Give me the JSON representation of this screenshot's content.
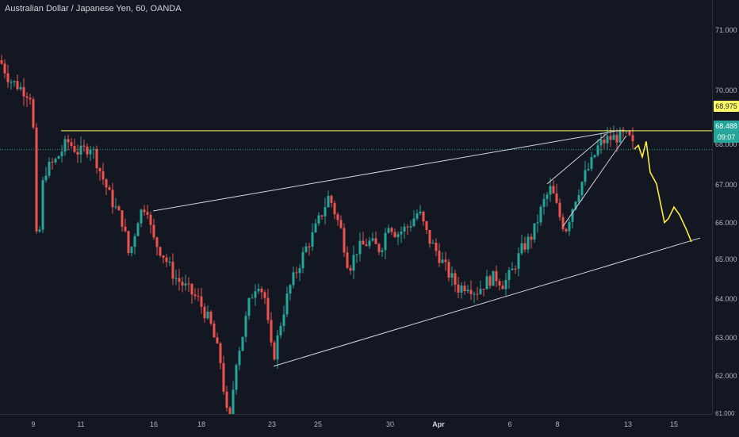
{
  "header": {
    "title": "Australian Dollar / Japanese Yen, 60, OANDA"
  },
  "price_axis": {
    "ticks": [
      "71.000",
      "70.000",
      "69.000",
      "68.000",
      "67.000",
      "66.000",
      "65.000",
      "64.000",
      "63.000",
      "62.000",
      "61.000"
    ],
    "tick_values": [
      71,
      70,
      69,
      68,
      67,
      66,
      65,
      64,
      63,
      62,
      61
    ]
  },
  "time_axis": {
    "ticks": [
      "9",
      "11",
      "16",
      "18",
      "23",
      "25",
      "30",
      "Apr",
      "6",
      "8",
      "13",
      "15"
    ]
  },
  "tags": {
    "resistance_label": "68.975",
    "current_price_label": "68.488",
    "countdown_label": "09:07"
  },
  "colors": {
    "background": "#131722",
    "up_candle": "#26a69a",
    "down_candle": "#ef5350",
    "resistance_line": "#ffff66",
    "current_price_line": "#26a69a",
    "trendline": "#d1d4dc",
    "projection": "#ffeb3b"
  },
  "chart_data": {
    "type": "candlestick",
    "symbol": "Australian Dollar / Japanese Yen",
    "interval": "60",
    "source": "OANDA",
    "ylim": [
      61,
      71.5
    ],
    "resistance_level": 68.975,
    "current_price": 68.488,
    "path_points": [
      [
        0,
        70.8
      ],
      [
        12,
        70.3
      ],
      [
        25,
        70.1
      ],
      [
        38,
        69.9
      ],
      [
        42,
        69.0
      ],
      [
        47,
        65.5
      ],
      [
        55,
        67.9
      ],
      [
        70,
        68.2
      ],
      [
        85,
        68.7
      ],
      [
        100,
        68.4
      ],
      [
        115,
        68.6
      ],
      [
        125,
        68.0
      ],
      [
        140,
        67.2
      ],
      [
        155,
        66.6
      ],
      [
        163,
        65.7
      ],
      [
        175,
        66.8
      ],
      [
        185,
        67.1
      ],
      [
        192,
        66.2
      ],
      [
        205,
        65.8
      ],
      [
        220,
        65.2
      ],
      [
        235,
        64.9
      ],
      [
        250,
        64.6
      ],
      [
        265,
        64.0
      ],
      [
        278,
        63.0
      ],
      [
        285,
        61.8
      ],
      [
        290,
        61.1
      ],
      [
        296,
        62.9
      ],
      [
        305,
        63.6
      ],
      [
        315,
        64.6
      ],
      [
        325,
        65.1
      ],
      [
        335,
        64.6
      ],
      [
        340,
        63.5
      ],
      [
        345,
        63.1
      ],
      [
        355,
        64.1
      ],
      [
        365,
        64.9
      ],
      [
        375,
        65.4
      ],
      [
        385,
        65.9
      ],
      [
        395,
        66.3
      ],
      [
        405,
        66.8
      ],
      [
        415,
        67.3
      ],
      [
        420,
        67.0
      ],
      [
        430,
        66.4
      ],
      [
        440,
        65.4
      ],
      [
        450,
        65.9
      ],
      [
        465,
        66.1
      ],
      [
        480,
        65.9
      ],
      [
        490,
        66.6
      ],
      [
        500,
        66.3
      ],
      [
        515,
        66.5
      ],
      [
        528,
        66.9
      ],
      [
        540,
        66.2
      ],
      [
        552,
        65.8
      ],
      [
        565,
        65.3
      ],
      [
        578,
        64.9
      ],
      [
        590,
        65.0
      ],
      [
        600,
        64.8
      ],
      [
        615,
        65.1
      ],
      [
        625,
        65.2
      ],
      [
        635,
        65.0
      ],
      [
        645,
        65.3
      ],
      [
        658,
        65.9
      ],
      [
        672,
        66.3
      ],
      [
        685,
        67.1
      ],
      [
        695,
        67.5
      ],
      [
        705,
        66.8
      ],
      [
        713,
        66.4
      ],
      [
        725,
        67.2
      ],
      [
        737,
        67.8
      ],
      [
        745,
        68.1
      ],
      [
        755,
        68.6
      ],
      [
        765,
        68.75
      ],
      [
        775,
        68.8
      ],
      [
        785,
        68.85
      ],
      [
        793,
        68.8
      ],
      [
        800,
        68.5
      ]
    ],
    "projection_points": [
      [
        800,
        68.5
      ],
      [
        805,
        68.6
      ],
      [
        810,
        68.3
      ],
      [
        815,
        68.7
      ],
      [
        820,
        67.9
      ],
      [
        828,
        67.6
      ],
      [
        838,
        66.6
      ],
      [
        843,
        66.7
      ],
      [
        850,
        67.0
      ],
      [
        857,
        66.8
      ],
      [
        866,
        66.4
      ],
      [
        872,
        66.1
      ]
    ],
    "lines": [
      {
        "name": "resistance",
        "points": [
          [
            77,
            68.975
          ],
          [
            898,
            68.975
          ]
        ]
      },
      {
        "name": "upper-trendline",
        "points": [
          [
            193,
            66.9
          ],
          [
            780,
            68.98
          ]
        ]
      },
      {
        "name": "lower-trendline",
        "points": [
          [
            345,
            62.88
          ],
          [
            883,
            66.2
          ]
        ]
      },
      {
        "name": "inner-channel-upper",
        "points": [
          [
            690,
            67.6
          ],
          [
            765,
            68.9
          ]
        ]
      },
      {
        "name": "inner-channel-lower",
        "points": [
          [
            710,
            66.5
          ],
          [
            790,
            68.85
          ]
        ]
      }
    ]
  }
}
